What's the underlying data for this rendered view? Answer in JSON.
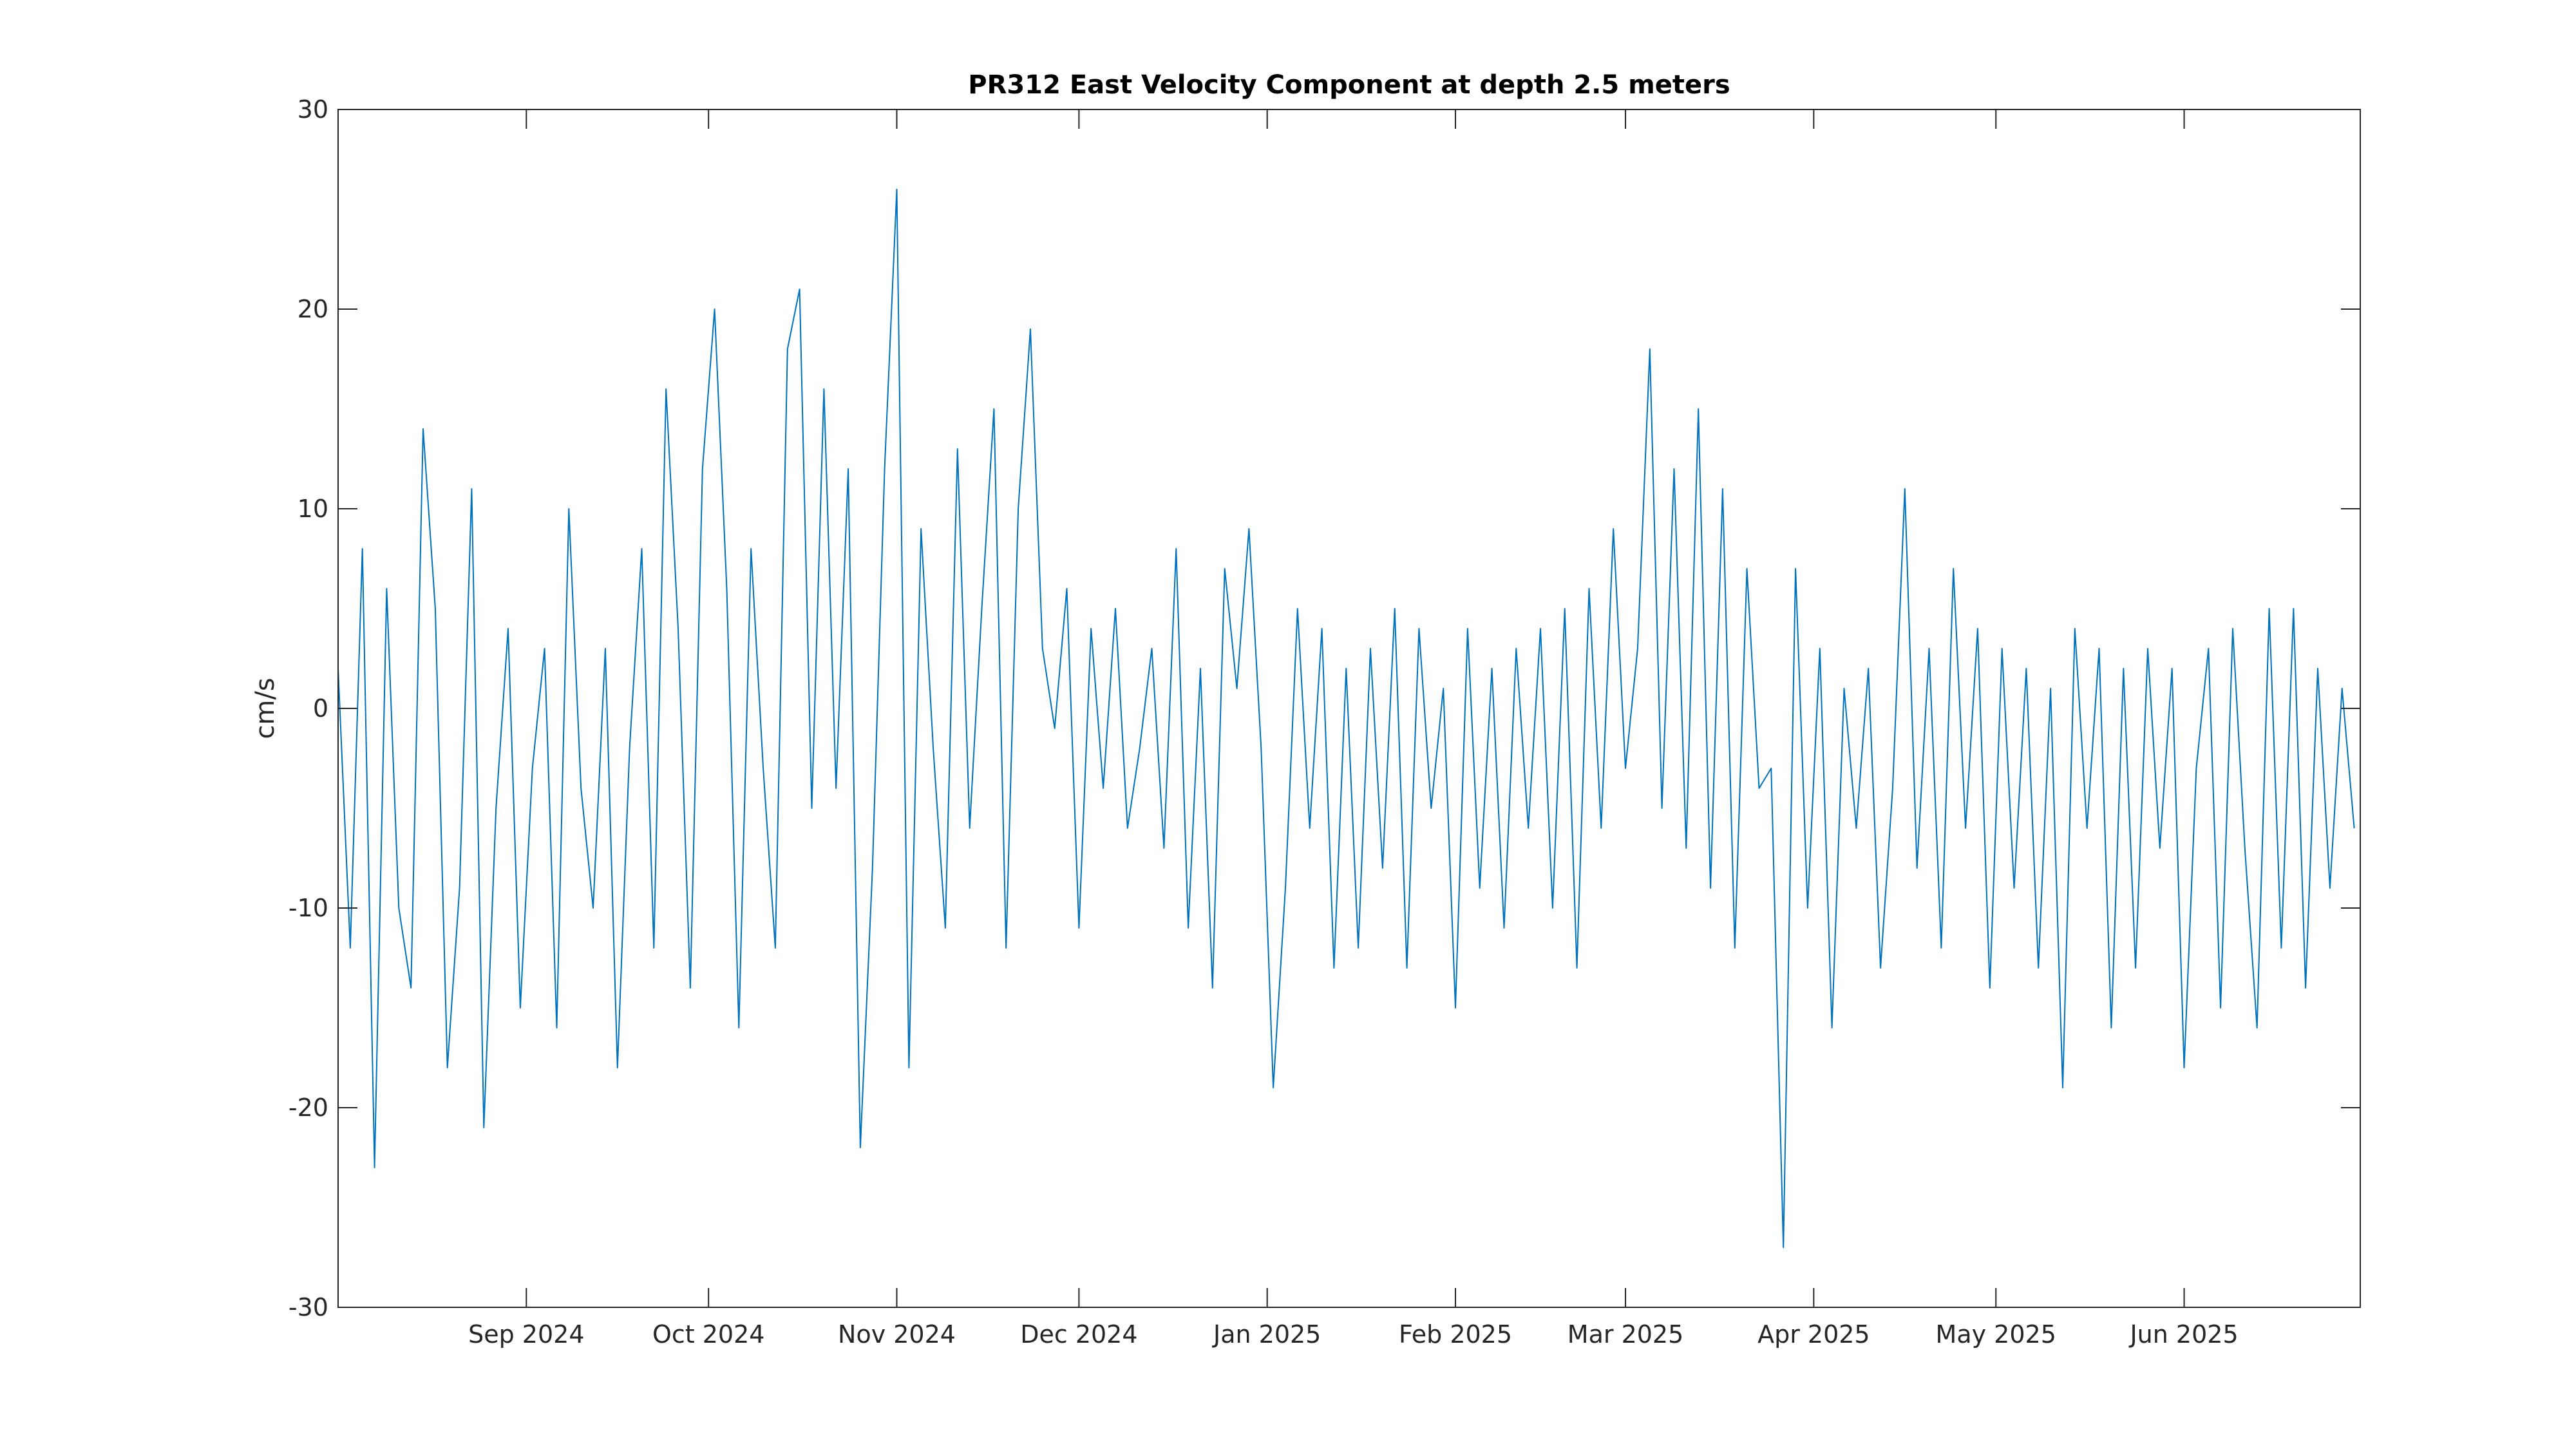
{
  "chart_data": {
    "type": "line",
    "title": "PR312 East Velocity Component at depth 2.5 meters",
    "xlabel": "",
    "ylabel": "cm/s",
    "xlim": [
      "2024-08-01",
      "2025-06-30"
    ],
    "ylim": [
      -30,
      30
    ],
    "grid": false,
    "legend": null,
    "series_color": "#0072BD",
    "yticks": [
      30,
      20,
      10,
      0,
      -10,
      -20,
      -30
    ],
    "ytick_labels": [
      "30",
      "20",
      "10",
      "0",
      "-10",
      "-20",
      "-30"
    ],
    "xticks": [
      {
        "date": "2024-09-01",
        "label": "Sep 2024"
      },
      {
        "date": "2024-10-01",
        "label": "Oct 2024"
      },
      {
        "date": "2024-11-01",
        "label": "Nov 2024"
      },
      {
        "date": "2024-12-01",
        "label": "Dec 2024"
      },
      {
        "date": "2025-01-01",
        "label": "Jan 2025"
      },
      {
        "date": "2025-02-01",
        "label": "Feb 2025"
      },
      {
        "date": "2025-03-01",
        "label": "Mar 2025"
      },
      {
        "date": "2025-04-01",
        "label": "Apr 2025"
      },
      {
        "date": "2025-05-01",
        "label": "May 2025"
      },
      {
        "date": "2025-06-01",
        "label": "Jun 2025"
      }
    ],
    "series": [
      {
        "x": [
          "2024-08-01",
          "2024-08-03",
          "2024-08-05",
          "2024-08-07",
          "2024-08-09",
          "2024-08-11",
          "2024-08-13",
          "2024-08-15",
          "2024-08-17",
          "2024-08-19",
          "2024-08-21",
          "2024-08-23",
          "2024-08-25",
          "2024-08-27",
          "2024-08-29",
          "2024-08-31",
          "2024-09-02",
          "2024-09-04",
          "2024-09-06",
          "2024-09-08",
          "2024-09-10",
          "2024-09-12",
          "2024-09-14",
          "2024-09-16",
          "2024-09-18",
          "2024-09-20",
          "2024-09-22",
          "2024-09-24",
          "2024-09-26",
          "2024-09-28",
          "2024-09-30",
          "2024-10-02",
          "2024-10-04",
          "2024-10-06",
          "2024-10-08",
          "2024-10-10",
          "2024-10-12",
          "2024-10-14",
          "2024-10-16",
          "2024-10-18",
          "2024-10-20",
          "2024-10-22",
          "2024-10-24",
          "2024-10-26",
          "2024-10-28",
          "2024-10-30",
          "2024-11-01",
          "2024-11-03",
          "2024-11-05",
          "2024-11-07",
          "2024-11-09",
          "2024-11-11",
          "2024-11-13",
          "2024-11-15",
          "2024-11-17",
          "2024-11-19",
          "2024-11-21",
          "2024-11-23",
          "2024-11-25",
          "2024-11-27",
          "2024-11-29",
          "2024-12-01",
          "2024-12-03",
          "2024-12-05",
          "2024-12-07",
          "2024-12-09",
          "2024-12-11",
          "2024-12-13",
          "2024-12-15",
          "2024-12-17",
          "2024-12-19",
          "2024-12-21",
          "2024-12-23",
          "2024-12-25",
          "2024-12-27",
          "2024-12-29",
          "2024-12-31",
          "2025-01-02",
          "2025-01-04",
          "2025-01-06",
          "2025-01-08",
          "2025-01-10",
          "2025-01-12",
          "2025-01-14",
          "2025-01-16",
          "2025-01-18",
          "2025-01-20",
          "2025-01-22",
          "2025-01-24",
          "2025-01-26",
          "2025-01-28",
          "2025-01-30",
          "2025-02-01",
          "2025-02-03",
          "2025-02-05",
          "2025-02-07",
          "2025-02-09",
          "2025-02-11",
          "2025-02-13",
          "2025-02-15",
          "2025-02-17",
          "2025-02-19",
          "2025-02-21",
          "2025-02-23",
          "2025-02-25",
          "2025-02-27",
          "2025-03-01",
          "2025-03-03",
          "2025-03-05",
          "2025-03-07",
          "2025-03-09",
          "2025-03-11",
          "2025-03-13",
          "2025-03-15",
          "2025-03-17",
          "2025-03-19",
          "2025-03-21",
          "2025-03-23",
          "2025-03-25",
          "2025-03-27",
          "2025-03-29",
          "2025-03-31",
          "2025-04-02",
          "2025-04-04",
          "2025-04-06",
          "2025-04-08",
          "2025-04-10",
          "2025-04-12",
          "2025-04-14",
          "2025-04-16",
          "2025-04-18",
          "2025-04-20",
          "2025-04-22",
          "2025-04-24",
          "2025-04-26",
          "2025-04-28",
          "2025-04-30",
          "2025-05-02",
          "2025-05-04",
          "2025-05-06",
          "2025-05-08",
          "2025-05-10",
          "2025-05-12",
          "2025-05-14",
          "2025-05-16",
          "2025-05-18",
          "2025-05-20",
          "2025-05-22",
          "2025-05-24",
          "2025-05-26",
          "2025-05-28",
          "2025-05-30",
          "2025-06-01",
          "2025-06-03",
          "2025-06-05",
          "2025-06-07",
          "2025-06-09",
          "2025-06-11",
          "2025-06-13",
          "2025-06-15",
          "2025-06-17",
          "2025-06-19",
          "2025-06-21",
          "2025-06-23",
          "2025-06-25",
          "2025-06-27",
          "2025-06-29"
        ],
        "y": [
          2,
          -12,
          8,
          -23,
          6,
          -10,
          -14,
          14,
          5,
          -18,
          -9,
          11,
          -21,
          -5,
          4,
          -15,
          -3,
          3,
          -16,
          10,
          -4,
          -10,
          3,
          -18,
          -2,
          8,
          -12,
          16,
          4,
          -14,
          12,
          20,
          6,
          -16,
          8,
          -3,
          -12,
          18,
          21,
          -5,
          16,
          -4,
          12,
          -22,
          -8,
          12,
          26,
          -18,
          9,
          -2,
          -11,
          13,
          -6,
          5,
          15,
          -12,
          10,
          19,
          3,
          -1,
          6,
          -11,
          4,
          -4,
          5,
          -6,
          -2,
          3,
          -7,
          8,
          -11,
          2,
          -14,
          7,
          1,
          9,
          -2,
          -19,
          -9,
          5,
          -6,
          4,
          -13,
          2,
          -12,
          3,
          -8,
          5,
          -13,
          4,
          -5,
          1,
          -15,
          4,
          -9,
          2,
          -11,
          3,
          -6,
          4,
          -10,
          5,
          -13,
          6,
          -6,
          9,
          -3,
          3,
          18,
          -5,
          12,
          -7,
          15,
          -9,
          11,
          -12,
          7,
          -4,
          -3,
          -27,
          7,
          -10,
          3,
          -16,
          1,
          -6,
          2,
          -13,
          -4,
          11,
          -8,
          3,
          -12,
          7,
          -6,
          4,
          -14,
          3,
          -9,
          2,
          -13,
          1,
          -19,
          4,
          -6,
          3,
          -16,
          2,
          -13,
          3,
          -7,
          2,
          -18,
          -3,
          3,
          -15,
          4,
          -7,
          -16,
          5,
          -12,
          5,
          -14,
          2,
          -9,
          1,
          -6
        ]
      }
    ]
  }
}
